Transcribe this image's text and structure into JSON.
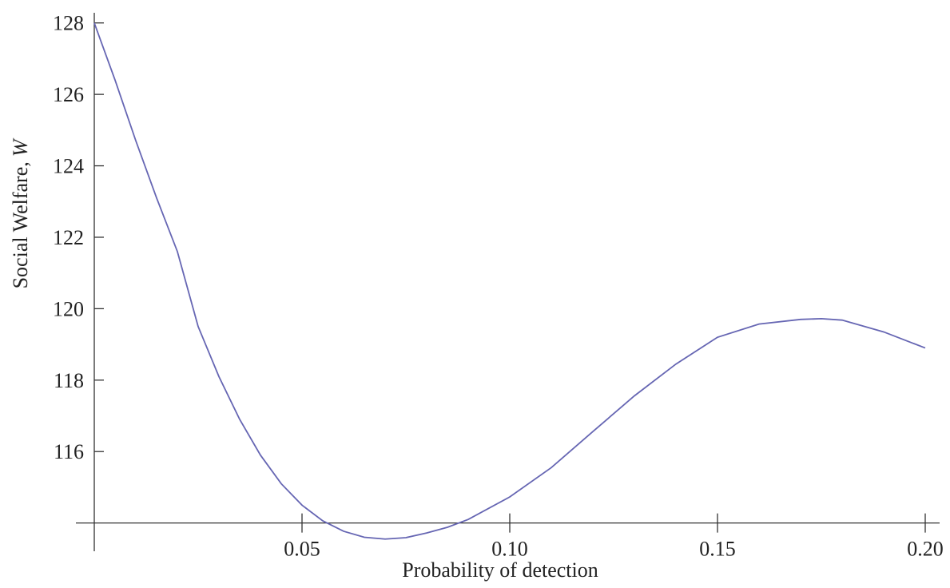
{
  "chart_data": {
    "type": "line",
    "x_label": "Probability of detection",
    "y_label": "Social Welfare,",
    "y_label_variable": "W",
    "series": [
      {
        "color": "#6666b3",
        "x": [
          0,
          0.005,
          0.01,
          0.015,
          0.02,
          0.025,
          0.03,
          0.035,
          0.04,
          0.045,
          0.05,
          0.055,
          0.06,
          0.065,
          0.07,
          0.075,
          0.08,
          0.085,
          0.09,
          0.1,
          0.11,
          0.12,
          0.13,
          0.14,
          0.15,
          0.16,
          0.17,
          0.175,
          0.18,
          0.19,
          0.2
        ],
        "values": [
          128,
          126.4,
          124.7,
          123.1,
          121.6,
          119.5,
          118.1,
          116.9,
          115.9,
          115.1,
          114.5,
          114.06,
          113.77,
          113.6,
          113.55,
          113.59,
          113.72,
          113.88,
          114.1,
          114.73,
          115.55,
          116.56,
          117.56,
          118.45,
          119.2,
          119.57,
          119.7,
          119.72,
          119.68,
          119.35,
          118.9
        ]
      }
    ],
    "xlim": [
      0,
      0.2
    ],
    "ylim": [
      113.5,
      128.15
    ],
    "axes_origin": [
      0,
      114
    ],
    "xticks": [
      0.05,
      {
        "value": 0.1,
        "label": "0.10"
      },
      0.15,
      {
        "value": 0.2,
        "label": "0.20"
      }
    ],
    "yticks": [
      116,
      118,
      120,
      122,
      124,
      126,
      128
    ]
  }
}
